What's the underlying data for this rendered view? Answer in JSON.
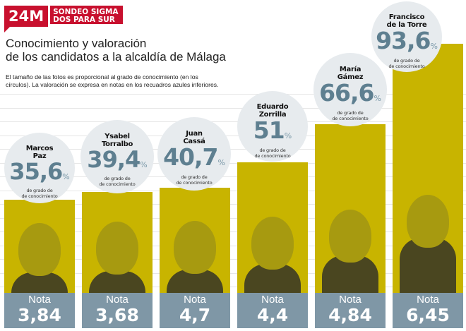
{
  "header": {
    "tag": "24M",
    "subtitle_line1": "SONDEO SIGMA",
    "subtitle_line2": "DOS PARA SUR",
    "title_line1": "Conocimiento y valoración",
    "title_line2": "de los candidatos a la alcaldía de Málaga",
    "description_line1": "El tamaño de las fotos es proporcional al grado de conocimiento (en los",
    "description_line2": "círculos). La valoración se expresa en notas en los recuadros azules inferiores."
  },
  "labels": {
    "pct_symbol": "%",
    "caption_line1": "de grado de",
    "caption_line2": "de conocimiento",
    "nota": "Nota"
  },
  "colors": {
    "brand_red": "#c8102e",
    "bar_yellow": "#c8b400",
    "nota_blue": "#7f97a6",
    "pct_blue": "#5e7f90",
    "circle_bg": "#e7ebee"
  },
  "candidates": [
    {
      "name_line1": "Marcos",
      "name_line2": "Paz",
      "conocimiento": "35,6",
      "nota": "3,84"
    },
    {
      "name_line1": "Ysabel",
      "name_line2": "Torralbo",
      "conocimiento": "39,4",
      "nota": "3,68"
    },
    {
      "name_line1": "Juan",
      "name_line2": "Cassá",
      "conocimiento": "40,7",
      "nota": "4,7"
    },
    {
      "name_line1": "Eduardo",
      "name_line2": "Zorrilla",
      "conocimiento": "51",
      "nota": "4,4"
    },
    {
      "name_line1": "María",
      "name_line2": "Gámez",
      "conocimiento": "66,6",
      "nota": "4,84"
    },
    {
      "name_line1": "Francisco",
      "name_line2": "de la Torre",
      "conocimiento": "93,6",
      "nota": "6,45"
    }
  ],
  "chart_data": {
    "type": "bar",
    "title": "Conocimiento y valoración de los candidatos a la alcaldía de Málaga",
    "categories": [
      "Marcos Paz",
      "Ysabel Torralbo",
      "Juan Cassá",
      "Eduardo Zorrilla",
      "María Gámez",
      "Francisco de la Torre"
    ],
    "series": [
      {
        "name": "Grado de conocimiento (%)",
        "values": [
          35.6,
          39.4,
          40.7,
          51,
          66.6,
          93.6
        ]
      },
      {
        "name": "Nota (valoración)",
        "values": [
          3.84,
          3.68,
          4.7,
          4.4,
          4.84,
          6.45
        ]
      }
    ],
    "xlabel": "",
    "ylabel": "",
    "grid": true,
    "legend": "none"
  }
}
